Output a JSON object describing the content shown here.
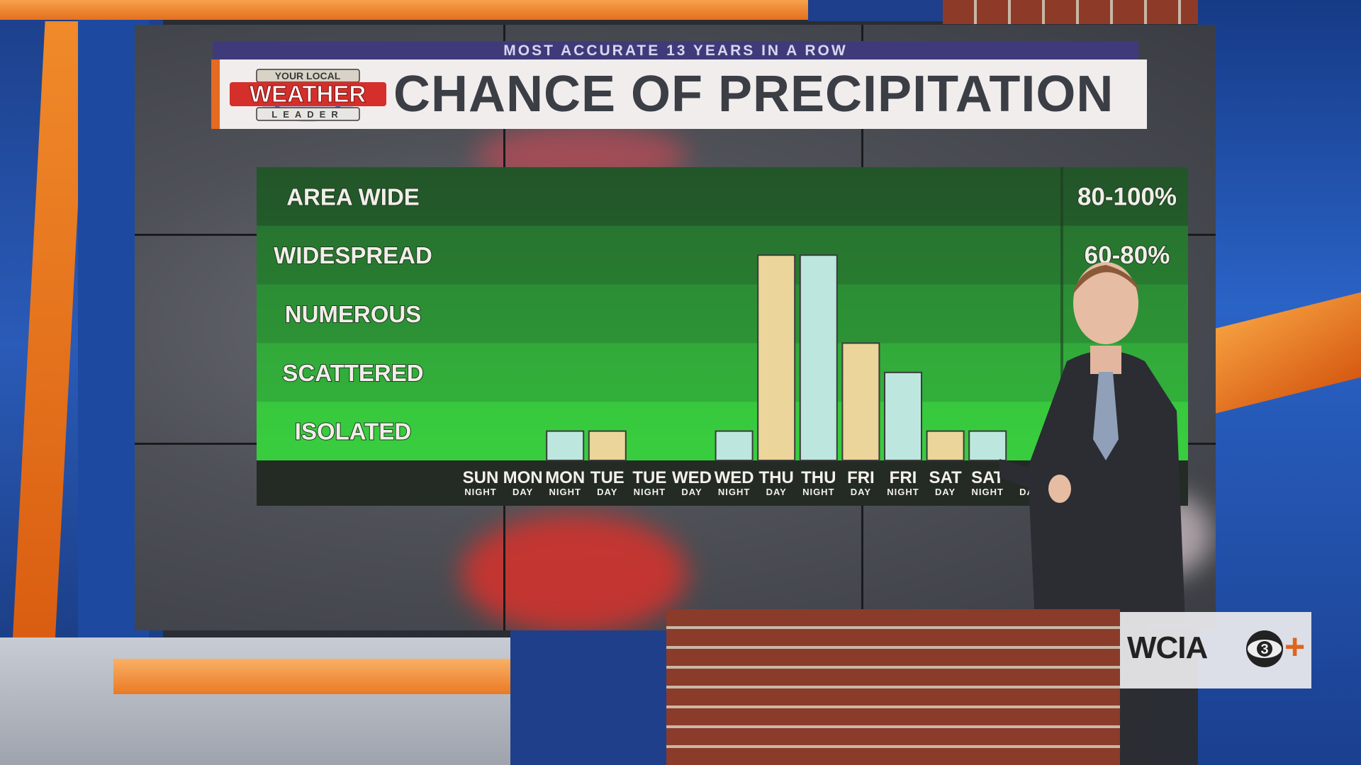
{
  "header": {
    "tagline": "MOST ACCURATE 13 YEARS IN A ROW",
    "logo_line1": "YOUR LOCAL",
    "logo_line2": "WEATHER",
    "logo_line3": "LEADER",
    "title": "CHANCE OF PRECIPITATION"
  },
  "chart_data": {
    "type": "bar",
    "title": "CHANCE OF PRECIPITATION",
    "y_categories": [
      {
        "label": "AREA WIDE",
        "range": "80-100%"
      },
      {
        "label": "WIDESPREAD",
        "range": "60-80%"
      },
      {
        "label": "NUMEROUS",
        "range": ""
      },
      {
        "label": "SCATTERED",
        "range": ""
      },
      {
        "label": "ISOLATED",
        "range": ""
      }
    ],
    "ylim": [
      0,
      100
    ],
    "periods": [
      {
        "day": "SUN",
        "part": "NIGHT",
        "value": 0
      },
      {
        "day": "MON",
        "part": "DAY",
        "value": 0
      },
      {
        "day": "MON",
        "part": "NIGHT",
        "value": 10
      },
      {
        "day": "TUE",
        "part": "DAY",
        "value": 10
      },
      {
        "day": "TUE",
        "part": "NIGHT",
        "value": 0
      },
      {
        "day": "WED",
        "part": "DAY",
        "value": 0
      },
      {
        "day": "WED",
        "part": "NIGHT",
        "value": 10
      },
      {
        "day": "THU",
        "part": "DAY",
        "value": 70
      },
      {
        "day": "THU",
        "part": "NIGHT",
        "value": 70
      },
      {
        "day": "FRI",
        "part": "DAY",
        "value": 40
      },
      {
        "day": "FRI",
        "part": "NIGHT",
        "value": 30
      },
      {
        "day": "SAT",
        "part": "DAY",
        "value": 10
      },
      {
        "day": "SAT",
        "part": "NIGHT",
        "value": 10
      },
      {
        "day": "SUN",
        "part": "DAY",
        "value": 0
      }
    ],
    "colors": {
      "day_bar": "#ecd59a",
      "night_bar": "#bde6df"
    },
    "legend": "none",
    "grid": false
  },
  "station": {
    "call_letters": "WCIA",
    "channel": "3",
    "plus": "+"
  },
  "colors": {
    "accent_orange": "#e56a22",
    "strap_purple": "#3f3b7a",
    "chart_green": "#2fa63a"
  }
}
